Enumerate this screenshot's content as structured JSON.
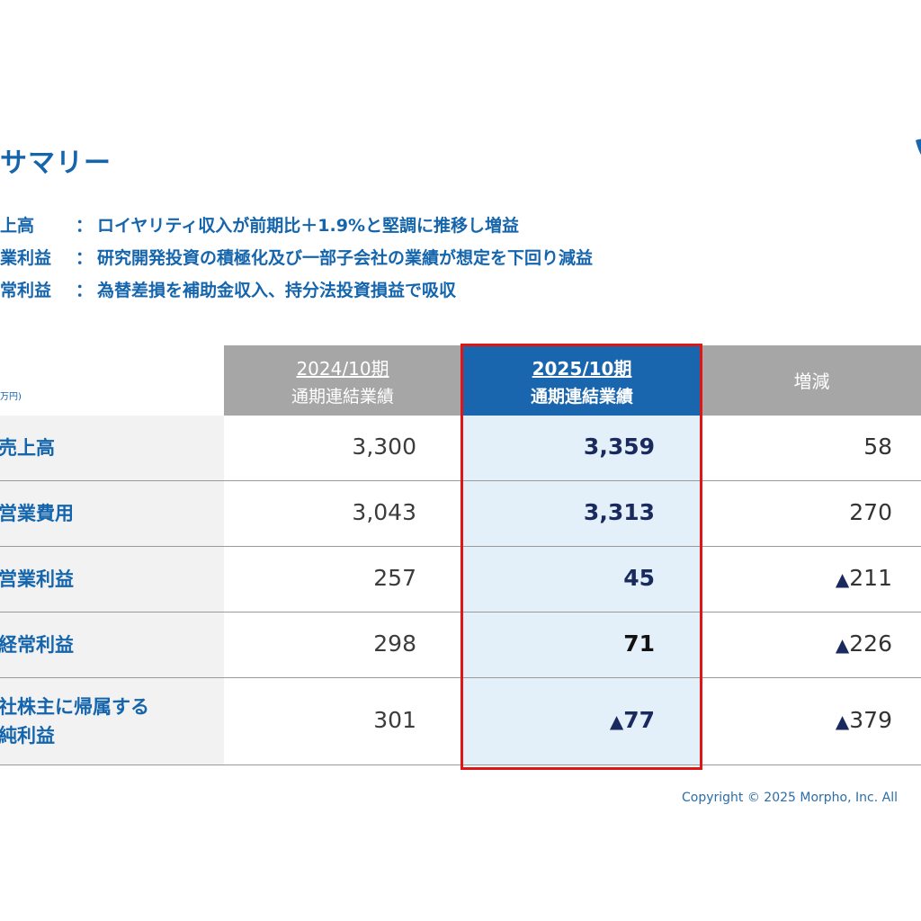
{
  "title": "サマリー",
  "summary": [
    {
      "label": "上高",
      "sep": "：",
      "text": "ロイヤリティ収入が前期比＋1.9%と堅調に推移し増益"
    },
    {
      "label": "業利益",
      "sep": "：",
      "text": "研究開発投資の積極化及び一部子会社の業績が想定を下回り減益"
    },
    {
      "label": "常利益",
      "sep": "：",
      "text": "為替差損を補助金収入、持分法投資損益で吸収"
    }
  ],
  "table": {
    "unit": "万円)",
    "headers": {
      "prev_period": "2024/10期",
      "prev_sub": "通期連結業績",
      "cur_period": "2025/10期",
      "cur_sub": "通期連結業績",
      "diff": "増減"
    },
    "rows": [
      {
        "label": "売上高",
        "prev": "3,300",
        "cur": "3,359",
        "diff_tri": "",
        "diff": "58"
      },
      {
        "label": "営業費用",
        "prev": "3,043",
        "cur": "3,313",
        "diff_tri": "",
        "diff": "270"
      },
      {
        "label": "営業利益",
        "prev": "257",
        "cur": "45",
        "diff_tri": "▲",
        "diff": "211"
      },
      {
        "label": "経常利益",
        "prev": "298",
        "cur": "71",
        "diff_tri": "▲",
        "diff": "226"
      },
      {
        "label_line1": "社株主に帰属する",
        "label_line2": "純利益",
        "prev": "301",
        "cur_tri": "▲",
        "cur": "77",
        "diff_tri": "▲",
        "diff": "379"
      }
    ]
  },
  "colors": {
    "brand_blue": "#1565ad",
    "header_gray": "#a6a6a6",
    "highlight_red": "#e01515",
    "current_column_bg": "#e3eff9"
  },
  "copyright": "Copyright © 2025 Morpho, Inc. All"
}
